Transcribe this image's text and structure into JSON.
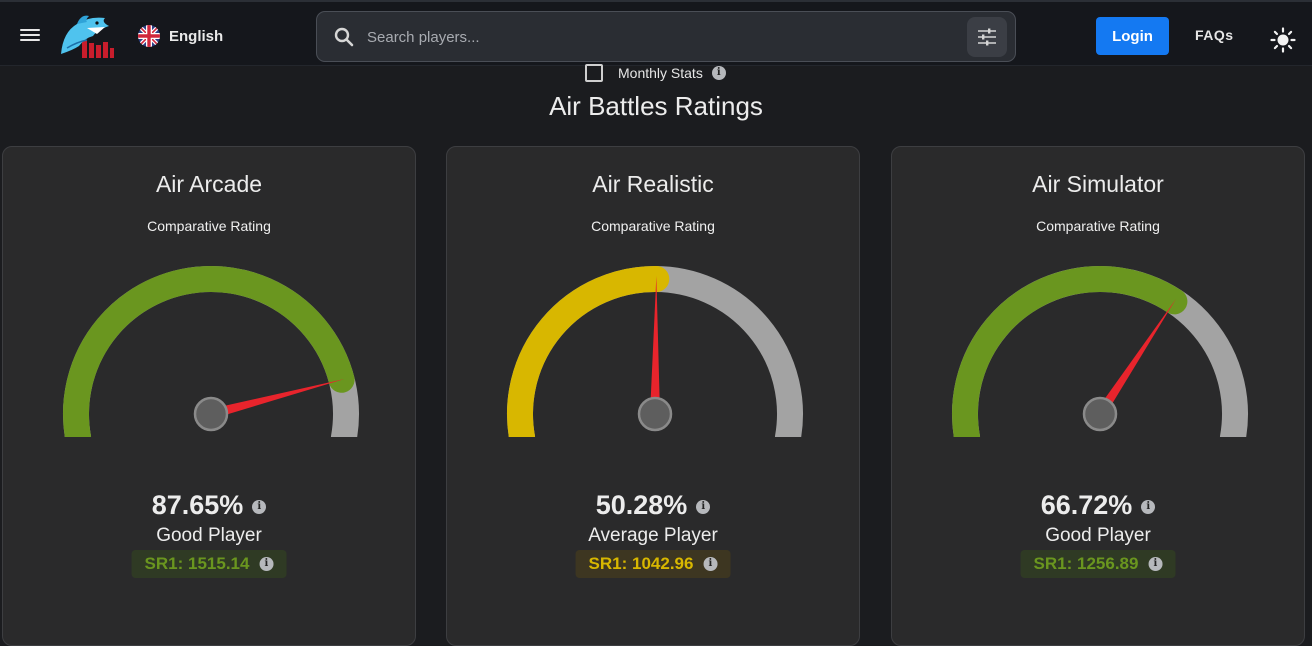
{
  "header": {
    "language": "English",
    "search_placeholder": "Search players...",
    "login_label": "Login",
    "faqs_label": "FAQs"
  },
  "monthly_stats": {
    "label": "Monthly Stats",
    "checked": false
  },
  "page_title": "Air Battles Ratings",
  "colors": {
    "good": "#6a961f",
    "average": "#d8b700",
    "track": "#a3a3a3",
    "needle": "#e8242c",
    "accent": "#1479f2"
  },
  "cards": [
    {
      "title": "Air Arcade",
      "subtitle": "Comparative Rating",
      "percent_value": 87.65,
      "percent": "87.65%",
      "rating": "Good Player",
      "sr": "SR1: 1515.14",
      "color": "#6a961f",
      "badge_bg": "#2f3a24"
    },
    {
      "title": "Air Realistic",
      "subtitle": "Comparative Rating",
      "percent_value": 50.28,
      "percent": "50.28%",
      "rating": "Average Player",
      "sr": "SR1: 1042.96",
      "color": "#d8b700",
      "badge_bg": "#3d3621"
    },
    {
      "title": "Air Simulator",
      "subtitle": "Comparative Rating",
      "percent_value": 66.72,
      "percent": "66.72%",
      "rating": "Good Player",
      "sr": "SR1: 1256.89",
      "color": "#6a961f",
      "badge_bg": "#2f3a24"
    }
  ]
}
